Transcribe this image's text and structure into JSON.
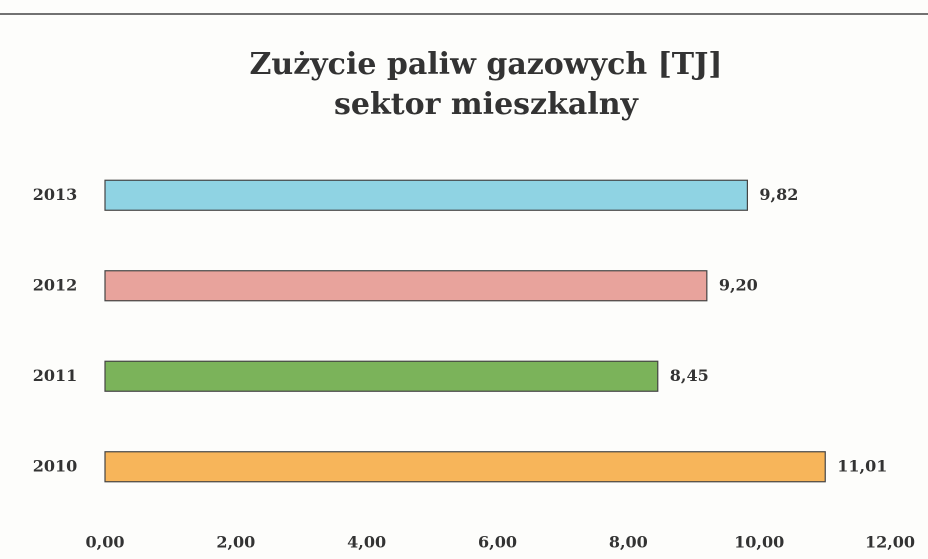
{
  "chart_data": {
    "type": "hbar",
    "title": "Zużycie paliw gazowych [TJ]",
    "subtitle": "sektor mieszkalny",
    "categories": [
      "2013",
      "2012",
      "2011",
      "2010"
    ],
    "values": [
      9.82,
      9.2,
      8.45,
      11.01
    ],
    "value_labels": [
      "9,82",
      "9,20",
      "8,45",
      "11,01"
    ],
    "colors": [
      "#8fd3e3",
      "#e8a39c",
      "#7bb35a",
      "#f7b55a"
    ],
    "xlim": [
      0,
      12
    ],
    "xticks": [
      {
        "value": 0,
        "label": "0,00"
      },
      {
        "value": 2,
        "label": "2,00"
      },
      {
        "value": 4,
        "label": "4,00"
      },
      {
        "value": 6,
        "label": "6,00"
      },
      {
        "value": 8,
        "label": "8,00"
      },
      {
        "value": 10,
        "label": "10,00"
      },
      {
        "value": 12,
        "label": "12,00"
      }
    ],
    "grid": false
  }
}
